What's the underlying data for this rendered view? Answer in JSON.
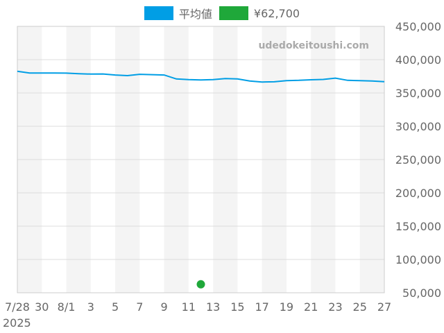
{
  "chart_data": {
    "type": "line",
    "watermark": "udedokeitoushi.com",
    "x_tick_labels": [
      "7/28",
      "30",
      "8/1",
      "3",
      "5",
      "7",
      "9",
      "11",
      "13",
      "15",
      "17",
      "19",
      "21",
      "23",
      "25",
      "27"
    ],
    "x_year_label": "2025",
    "y_tick_labels": [
      "450,000",
      "400,000",
      "350,000",
      "300,000",
      "250,000",
      "200,000",
      "150,000",
      "100,000",
      "50,000"
    ],
    "ylim": [
      50000,
      450000
    ],
    "grid": true,
    "legend_position": "top-center",
    "colors": {
      "average": "#009ee5",
      "point": "#1fa83a",
      "band": "#f4f4f4",
      "grid": "#dddddd",
      "axis": "#cccccc"
    },
    "series": [
      {
        "name": "平均値",
        "color": "#009ee5",
        "x": [
          "7/28",
          "7/29",
          "7/30",
          "7/31",
          "8/1",
          "8/2",
          "8/3",
          "8/4",
          "8/5",
          "8/6",
          "8/7",
          "8/8",
          "8/9",
          "8/10",
          "8/11",
          "8/12",
          "8/13",
          "8/14",
          "8/15",
          "8/16",
          "8/17",
          "8/18",
          "8/19",
          "8/20",
          "8/21",
          "8/22",
          "8/23",
          "8/24",
          "8/25",
          "8/26",
          "8/27"
        ],
        "values": [
          382500,
          380000,
          380000,
          380000,
          379800,
          379000,
          378300,
          378500,
          377000,
          376000,
          378000,
          377500,
          377000,
          371000,
          370000,
          369500,
          370000,
          371700,
          371000,
          368000,
          366500,
          366800,
          368500,
          369000,
          369800,
          370300,
          372300,
          369000,
          368500,
          368000,
          367000
        ]
      },
      {
        "name": "¥62,700",
        "color": "#1fa83a",
        "x": [
          "8/12"
        ],
        "values": [
          62700
        ]
      }
    ]
  }
}
